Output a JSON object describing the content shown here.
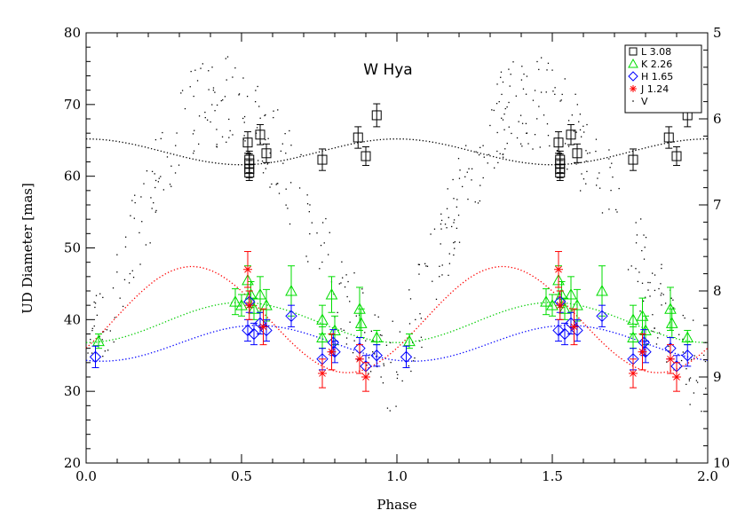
{
  "chart_data": {
    "type": "scatter",
    "title": "W Hya",
    "xlabel": "Phase",
    "ylabel": "UD Diameter [mas]",
    "xlim": [
      0.0,
      2.0
    ],
    "ylim": [
      20,
      80
    ],
    "y2lim": [
      5,
      10
    ],
    "y2_reversed": true,
    "xticks": [
      "0.0",
      "0.5",
      "1.0",
      "1.5",
      "2.0"
    ],
    "yticks": [
      "20",
      "30",
      "40",
      "50",
      "60",
      "70",
      "80"
    ],
    "y2ticks": [
      "5",
      "6",
      "7",
      "8",
      "9",
      "10"
    ],
    "grid": false,
    "legend": {
      "position": "top-right",
      "entries": [
        {
          "label": "L 3.08",
          "symbol": "square",
          "color": "#000000"
        },
        {
          "label": "K 2.26",
          "symbol": "triangle",
          "color": "#00dd00"
        },
        {
          "label": "H 1.65",
          "symbol": "diamond",
          "color": "#0000ff"
        },
        {
          "label": "J 1.24",
          "symbol": "asterisk",
          "color": "#ff0000"
        },
        {
          "label": "V",
          "symbol": "dot",
          "color": "#000000"
        }
      ]
    },
    "series": [
      {
        "name": "L 3.08",
        "symbol": "square",
        "color": "#000000",
        "errcolor": "#000000",
        "points": [
          {
            "x": 0.52,
            "y": 64.7,
            "e": 1.5
          },
          {
            "x": 0.525,
            "y": 62.3,
            "e": 1.2
          },
          {
            "x": 0.525,
            "y": 61.8,
            "e": 1.3
          },
          {
            "x": 0.525,
            "y": 61.0,
            "e": 1.2
          },
          {
            "x": 0.525,
            "y": 60.5,
            "e": 1.1
          },
          {
            "x": 0.56,
            "y": 65.8,
            "e": 1.4
          },
          {
            "x": 0.58,
            "y": 63.2,
            "e": 1.3
          },
          {
            "x": 0.76,
            "y": 62.3,
            "e": 1.5
          },
          {
            "x": 0.875,
            "y": 65.4,
            "e": 1.5
          },
          {
            "x": 0.9,
            "y": 62.8,
            "e": 1.3
          },
          {
            "x": 0.935,
            "y": 68.5,
            "e": 1.6
          },
          {
            "x": 1.52,
            "y": 64.7,
            "e": 1.5
          },
          {
            "x": 1.525,
            "y": 62.3,
            "e": 1.2
          },
          {
            "x": 1.525,
            "y": 61.8,
            "e": 1.3
          },
          {
            "x": 1.525,
            "y": 61.0,
            "e": 1.2
          },
          {
            "x": 1.525,
            "y": 60.5,
            "e": 1.1
          },
          {
            "x": 1.56,
            "y": 65.8,
            "e": 1.4
          },
          {
            "x": 1.58,
            "y": 63.2,
            "e": 1.3
          },
          {
            "x": 1.76,
            "y": 62.3,
            "e": 1.5
          },
          {
            "x": 1.875,
            "y": 65.4,
            "e": 1.5
          },
          {
            "x": 1.9,
            "y": 62.8,
            "e": 1.3
          },
          {
            "x": 1.935,
            "y": 68.5,
            "e": 1.6
          }
        ]
      },
      {
        "name": "K 2.26",
        "symbol": "triangle",
        "color": "#00dd00",
        "errcolor": "#00dd00",
        "points": [
          {
            "x": 0.04,
            "y": 37.0,
            "e": 1.0
          },
          {
            "x": 0.48,
            "y": 42.5,
            "e": 1.8
          },
          {
            "x": 0.5,
            "y": 42.0,
            "e": 1.5
          },
          {
            "x": 0.52,
            "y": 45.5,
            "e": 2.0
          },
          {
            "x": 0.53,
            "y": 43.5,
            "e": 1.8
          },
          {
            "x": 0.54,
            "y": 41.5,
            "e": 1.5
          },
          {
            "x": 0.56,
            "y": 43.5,
            "e": 2.5
          },
          {
            "x": 0.58,
            "y": 42.0,
            "e": 2.2
          },
          {
            "x": 0.66,
            "y": 44.0,
            "e": 3.5
          },
          {
            "x": 0.76,
            "y": 40.0,
            "e": 2.0
          },
          {
            "x": 0.76,
            "y": 37.5,
            "e": 1.5
          },
          {
            "x": 0.79,
            "y": 43.5,
            "e": 2.5
          },
          {
            "x": 0.8,
            "y": 38.5,
            "e": 2.0
          },
          {
            "x": 0.88,
            "y": 41.5,
            "e": 3.0
          },
          {
            "x": 0.885,
            "y": 39.5,
            "e": 2.0
          },
          {
            "x": 0.935,
            "y": 37.5,
            "e": 1.0
          },
          {
            "x": 1.04,
            "y": 37.0,
            "e": 1.0
          },
          {
            "x": 1.48,
            "y": 42.5,
            "e": 1.8
          },
          {
            "x": 1.5,
            "y": 42.0,
            "e": 1.5
          },
          {
            "x": 1.52,
            "y": 45.5,
            "e": 2.0
          },
          {
            "x": 1.53,
            "y": 43.5,
            "e": 1.8
          },
          {
            "x": 1.54,
            "y": 41.5,
            "e": 1.5
          },
          {
            "x": 1.56,
            "y": 43.5,
            "e": 2.5
          },
          {
            "x": 1.58,
            "y": 42.0,
            "e": 2.2
          },
          {
            "x": 1.66,
            "y": 44.0,
            "e": 3.5
          },
          {
            "x": 1.76,
            "y": 40.0,
            "e": 2.0
          },
          {
            "x": 1.76,
            "y": 37.5,
            "e": 1.5
          },
          {
            "x": 1.79,
            "y": 40.5,
            "e": 2.5
          },
          {
            "x": 1.8,
            "y": 38.5,
            "e": 2.0
          },
          {
            "x": 1.88,
            "y": 41.5,
            "e": 3.0
          },
          {
            "x": 1.885,
            "y": 39.5,
            "e": 2.0
          },
          {
            "x": 1.935,
            "y": 37.5,
            "e": 1.0
          }
        ]
      },
      {
        "name": "H 1.65",
        "symbol": "diamond",
        "color": "#0000ff",
        "errcolor": "#0000ff",
        "points": [
          {
            "x": 0.03,
            "y": 34.8,
            "e": 1.5
          },
          {
            "x": 0.52,
            "y": 38.5,
            "e": 1.5
          },
          {
            "x": 0.525,
            "y": 42.5,
            "e": 1.5
          },
          {
            "x": 0.54,
            "y": 38.0,
            "e": 1.5
          },
          {
            "x": 0.56,
            "y": 39.5,
            "e": 1.5
          },
          {
            "x": 0.58,
            "y": 38.5,
            "e": 1.5
          },
          {
            "x": 0.66,
            "y": 40.5,
            "e": 1.5
          },
          {
            "x": 0.76,
            "y": 34.5,
            "e": 1.5
          },
          {
            "x": 0.795,
            "y": 36.8,
            "e": 1.8
          },
          {
            "x": 0.8,
            "y": 35.5,
            "e": 1.5
          },
          {
            "x": 0.88,
            "y": 36.0,
            "e": 1.5
          },
          {
            "x": 0.9,
            "y": 33.5,
            "e": 1.5
          },
          {
            "x": 0.935,
            "y": 35.0,
            "e": 1.5
          },
          {
            "x": 1.03,
            "y": 34.8,
            "e": 1.5
          },
          {
            "x": 1.52,
            "y": 38.5,
            "e": 1.5
          },
          {
            "x": 1.525,
            "y": 42.5,
            "e": 1.5
          },
          {
            "x": 1.54,
            "y": 38.0,
            "e": 1.5
          },
          {
            "x": 1.56,
            "y": 39.5,
            "e": 1.5
          },
          {
            "x": 1.58,
            "y": 38.5,
            "e": 1.5
          },
          {
            "x": 1.66,
            "y": 40.5,
            "e": 1.5
          },
          {
            "x": 1.76,
            "y": 34.5,
            "e": 1.5
          },
          {
            "x": 1.795,
            "y": 36.8,
            "e": 1.8
          },
          {
            "x": 1.8,
            "y": 35.5,
            "e": 1.5
          },
          {
            "x": 1.88,
            "y": 36.0,
            "e": 1.5
          },
          {
            "x": 1.9,
            "y": 33.5,
            "e": 1.5
          },
          {
            "x": 1.935,
            "y": 35.0,
            "e": 1.5
          }
        ]
      },
      {
        "name": "J 1.24",
        "symbol": "asterisk",
        "color": "#ff0000",
        "errcolor": "#ff0000",
        "points": [
          {
            "x": 0.52,
            "y": 47.0,
            "e": 2.5
          },
          {
            "x": 0.525,
            "y": 42.0,
            "e": 2.0
          },
          {
            "x": 0.57,
            "y": 39.0,
            "e": 2.5
          },
          {
            "x": 0.76,
            "y": 32.5,
            "e": 2.0
          },
          {
            "x": 0.79,
            "y": 35.5,
            "e": 2.5
          },
          {
            "x": 0.88,
            "y": 34.5,
            "e": 2.0
          },
          {
            "x": 0.9,
            "y": 32.0,
            "e": 2.0
          },
          {
            "x": 1.52,
            "y": 47.0,
            "e": 2.5
          },
          {
            "x": 1.525,
            "y": 42.0,
            "e": 2.0
          },
          {
            "x": 1.57,
            "y": 39.0,
            "e": 2.5
          },
          {
            "x": 1.76,
            "y": 32.5,
            "e": 2.0
          },
          {
            "x": 1.79,
            "y": 35.5,
            "e": 2.5
          },
          {
            "x": 1.88,
            "y": 34.5,
            "e": 2.0
          },
          {
            "x": 1.9,
            "y": 32.0,
            "e": 2.0
          }
        ]
      }
    ],
    "fits": [
      {
        "name": "L 3.08",
        "color": "#000000",
        "mean": 63.4,
        "amp": 1.8,
        "phase": 0.0
      },
      {
        "name": "K 2.26",
        "color": "#00cc00",
        "mean": 39.6,
        "amp": 2.8,
        "phase": 0.5
      },
      {
        "name": "H 1.65",
        "color": "#0000ff",
        "mean": 36.7,
        "amp": 2.5,
        "phase": 0.55
      },
      {
        "name": "J 1.24",
        "color": "#ff0000",
        "mean": 40.0,
        "amp": 7.4,
        "phase": 0.34
      }
    ],
    "v_curve": {
      "name": "V",
      "color": "#000000",
      "mean": 7.35,
      "amp": 1.55,
      "peak_phase": 0.47,
      "rise": 0.45
    }
  }
}
